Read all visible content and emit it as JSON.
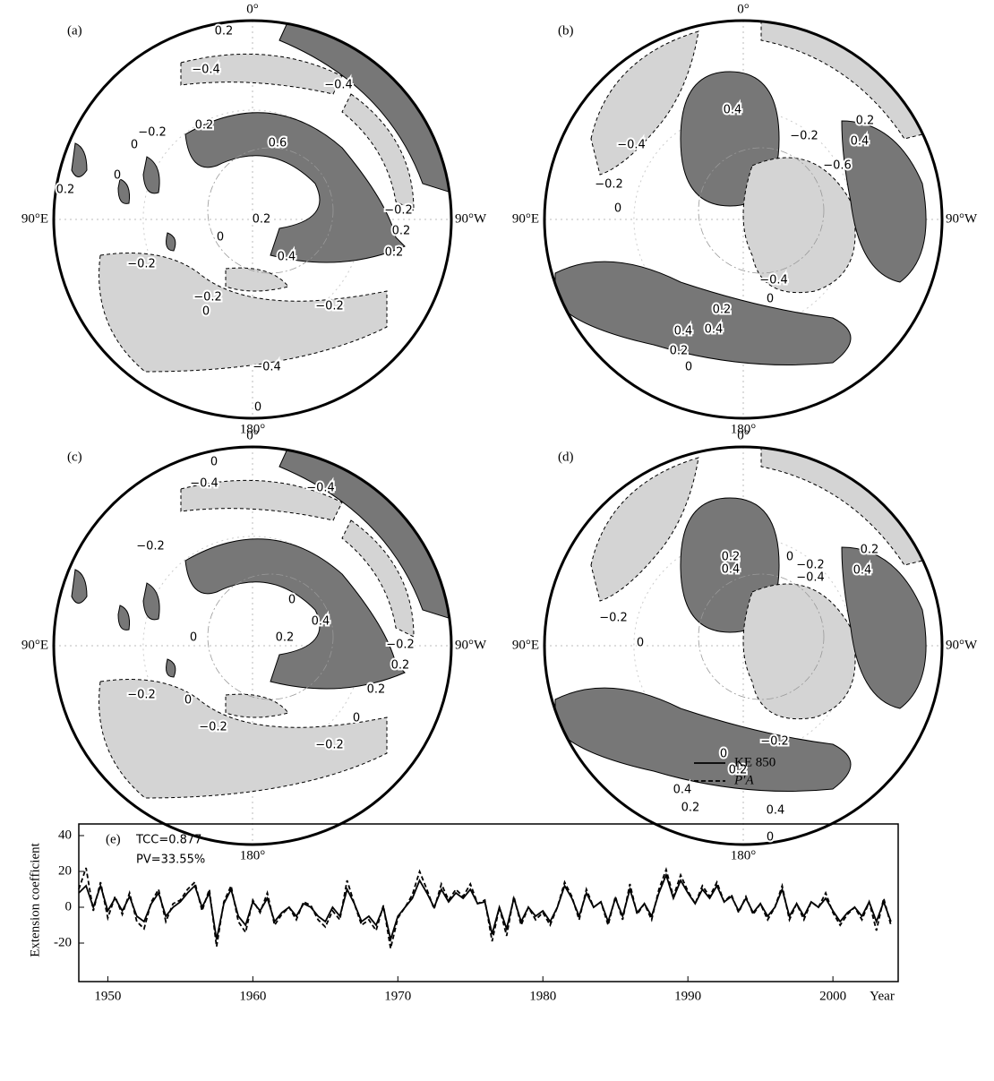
{
  "maps": [
    {
      "panel": "(a)",
      "north": "0°",
      "south": "180°",
      "west": "90°E",
      "east": "90°W",
      "contour_labels": [
        "0.2",
        "−0.4",
        "−0.4",
        "0.2",
        "−0.2",
        "0",
        "0.6",
        "0.2",
        "0",
        "0.2",
        "−0.2",
        "0.2",
        "0",
        "0.4",
        "0.2",
        "−0.2",
        "−0.2",
        "0",
        "−0.2",
        "−0.4",
        "0"
      ]
    },
    {
      "panel": "(b)",
      "north": "0°",
      "south": "180°",
      "west": "90°E",
      "east": "90°W",
      "contour_labels": [
        "−0.4",
        "0.4",
        "0.2",
        "0.4",
        "−0.2",
        "−0.6",
        "−0.2",
        "0",
        "−0.4",
        "0.2",
        "0",
        "0.4",
        "0.4",
        "0.2",
        "0"
      ]
    },
    {
      "panel": "(c)",
      "north": "0°",
      "south": "180°",
      "west": "90°E",
      "east": "90°W",
      "contour_labels": [
        "0",
        "−0.4",
        "−0.4",
        "−0.2",
        "0.4",
        "0",
        "0",
        "0.2",
        "−0.2",
        "0.2",
        "0.2",
        "−0.2",
        "0",
        "−0.2",
        "0",
        "−0.2"
      ]
    },
    {
      "panel": "(d)",
      "north": "0°",
      "south": "180°",
      "west": "90°E",
      "east": "90°W",
      "contour_labels": [
        "0.2",
        "0.4",
        "0.2",
        "0.4",
        "0",
        "−0.2",
        "−0.4",
        "−0.2",
        "0",
        "−0.2",
        "0",
        "0.2",
        "0.4",
        "0.2",
        "0.4",
        "0"
      ]
    }
  ],
  "chart_data": {
    "type": "line",
    "panel_label": "(e)",
    "annotations": [
      "TCC=0.877",
      "PV=33.55%"
    ],
    "y_label": "Extension coefficient",
    "x_label": "Year",
    "x": [
      1948,
      1948.5,
      1949,
      1949.5,
      1950,
      1950.5,
      1951,
      1951.5,
      1952,
      1952.5,
      1953,
      1953.5,
      1954,
      1954.5,
      1955,
      1955.5,
      1956,
      1956.5,
      1957,
      1957.5,
      1958,
      1958.5,
      1959,
      1959.5,
      1960,
      1960.5,
      1961,
      1961.5,
      1962,
      1962.5,
      1963,
      1963.5,
      1964,
      1964.5,
      1965,
      1965.5,
      1966,
      1966.5,
      1967,
      1967.5,
      1968,
      1968.5,
      1969,
      1969.5,
      1970,
      1970.5,
      1971,
      1971.5,
      1972,
      1972.5,
      1973,
      1973.5,
      1974,
      1974.5,
      1975,
      1975.5,
      1976,
      1976.5,
      1977,
      1977.5,
      1978,
      1978.5,
      1979,
      1979.5,
      1980,
      1980.5,
      1981,
      1981.5,
      1982,
      1982.5,
      1983,
      1983.5,
      1984,
      1984.5,
      1985,
      1985.5,
      1986,
      1986.5,
      1987,
      1987.5,
      1988,
      1988.5,
      1989,
      1989.5,
      1990,
      1990.5,
      1991,
      1991.5,
      1992,
      1992.5,
      1993,
      1993.5,
      1994,
      1994.5,
      1995,
      1995.5,
      1996,
      1996.5,
      1997,
      1997.5,
      1998,
      1998.5,
      1999,
      1999.5,
      2000,
      2000.5,
      2001,
      2001.5,
      2002,
      2002.5,
      2003,
      2003.5,
      2004
    ],
    "series": [
      {
        "name": "KE 850",
        "color": "#000000",
        "dash": false,
        "values": [
          8,
          12,
          0,
          12,
          -2,
          5,
          -2,
          6,
          -5,
          -8,
          2,
          8,
          -5,
          0,
          3,
          8,
          12,
          0,
          8,
          -18,
          2,
          10,
          -5,
          -10,
          3,
          -2,
          5,
          -8,
          -3,
          0,
          -5,
          2,
          0,
          -5,
          -8,
          0,
          -5,
          10,
          2,
          -8,
          -5,
          -10,
          0,
          -18,
          -5,
          0,
          5,
          15,
          8,
          0,
          10,
          3,
          8,
          5,
          10,
          2,
          3,
          -15,
          0,
          -12,
          5,
          -8,
          0,
          -5,
          -2,
          -8,
          0,
          12,
          5,
          -5,
          8,
          0,
          3,
          -8,
          5,
          -5,
          10,
          -3,
          2,
          -5,
          8,
          18,
          5,
          15,
          8,
          2,
          10,
          5,
          12,
          3,
          6,
          -2,
          5,
          -3,
          2,
          -5,
          0,
          10,
          -5,
          2,
          -5,
          3,
          0,
          5,
          -2,
          -8,
          -3,
          0,
          -5,
          3,
          -8,
          3,
          -8
        ]
      },
      {
        "name": "P′A",
        "color": "#000000",
        "dash": true,
        "values": [
          10,
          22,
          -2,
          14,
          -6,
          6,
          -4,
          8,
          -8,
          -12,
          3,
          10,
          -8,
          2,
          4,
          10,
          14,
          -2,
          10,
          -22,
          3,
          12,
          -8,
          -14,
          4,
          -3,
          8,
          -10,
          -4,
          0,
          -7,
          3,
          1,
          -7,
          -11,
          -2,
          -7,
          15,
          2,
          -10,
          -7,
          -13,
          1,
          -23,
          -6,
          0,
          7,
          20,
          10,
          -1,
          13,
          4,
          10,
          6,
          13,
          2,
          4,
          -19,
          0,
          -16,
          6,
          -10,
          0,
          -7,
          -3,
          -10,
          0,
          14,
          6,
          -7,
          10,
          0,
          3,
          -10,
          6,
          -7,
          13,
          -4,
          2,
          -7,
          10,
          21,
          6,
          18,
          9,
          2,
          12,
          6,
          14,
          3,
          7,
          -3,
          6,
          -4,
          2,
          -7,
          0,
          12,
          -7,
          2,
          -7,
          3,
          0,
          8,
          -3,
          -10,
          -4,
          0,
          -7,
          3,
          -13,
          5,
          -10
        ]
      }
    ],
    "xlim": [
      1948,
      2004.5
    ],
    "ylim": [
      -41.5,
      46.5
    ],
    "xticks": [
      1950,
      1960,
      1970,
      1980,
      1990,
      2000
    ],
    "yticks": [
      -20,
      0,
      20,
      40
    ]
  }
}
